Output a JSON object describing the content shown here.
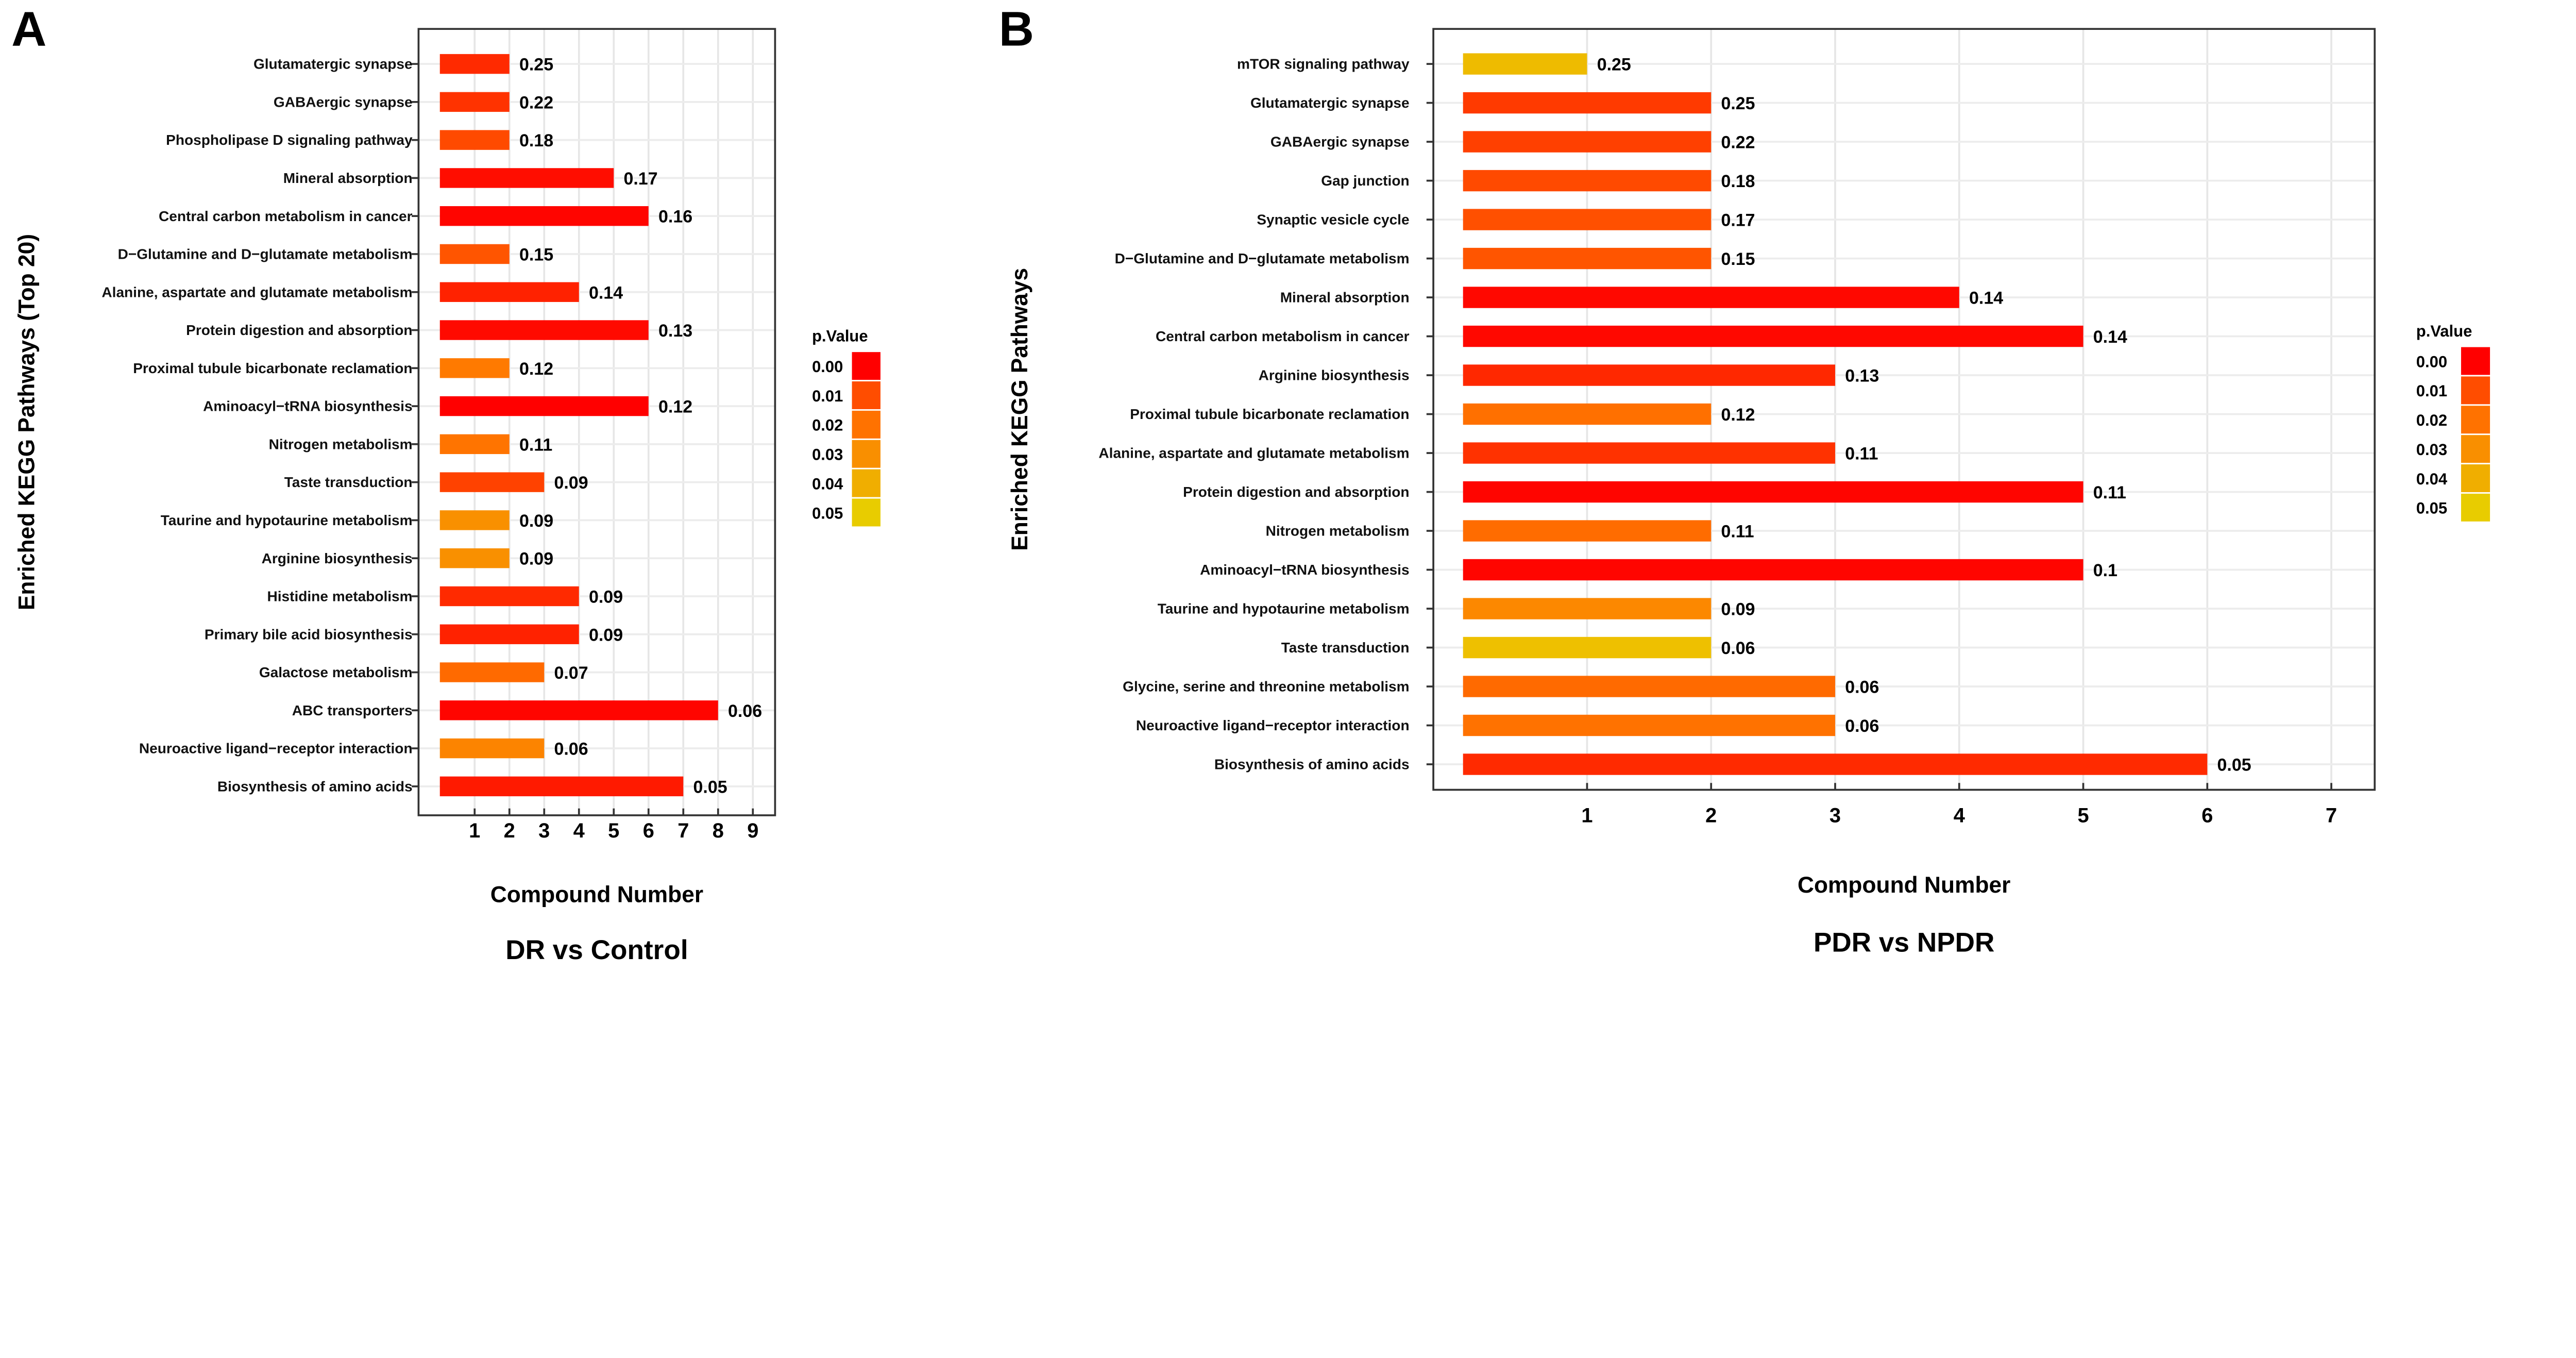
{
  "legend_colors": {
    "0.00": "#FF0000",
    "0.01": "#FF4D00",
    "0.02": "#FF7200",
    "0.03": "#F98F00",
    "0.04": "#F0AE00",
    "0.05": "#E8CC00"
  },
  "chart_data": [
    {
      "type": "bar",
      "orientation": "horizontal",
      "panel_letter": "A",
      "title": "DR vs Control",
      "xlabel": "Compound Number",
      "ylabel": "Enriched KEGG Pathways (Top 20)",
      "xticks": [
        1,
        2,
        3,
        4,
        5,
        6,
        7,
        8,
        9
      ],
      "xlim": [
        0,
        9.5
      ],
      "grid": true,
      "legend": {
        "title": "p.Value",
        "position": "right",
        "labels": [
          "0.00",
          "0.01",
          "0.02",
          "0.03",
          "0.04",
          "0.05"
        ]
      },
      "bars": [
        {
          "category": "Glutamatergic synapse",
          "value": 2,
          "label": "0.25",
          "color": "#FF2A00"
        },
        {
          "category": "GABAergic synapse",
          "value": 2,
          "label": "0.22",
          "color": "#FF3300"
        },
        {
          "category": "Phospholipase D signaling pathway",
          "value": 2,
          "label": "0.18",
          "color": "#FF4A00"
        },
        {
          "category": "Mineral absorption",
          "value": 5,
          "label": "0.17",
          "color": "#FF0D00"
        },
        {
          "category": "Central carbon metabolism in cancer",
          "value": 6,
          "label": "0.16",
          "color": "#FF0500"
        },
        {
          "category": "D−Glutamine and D−glutamate metabolism",
          "value": 2,
          "label": "0.15",
          "color": "#FF5500"
        },
        {
          "category": "Alanine, aspartate and glutamate metabolism",
          "value": 4,
          "label": "0.14",
          "color": "#FF2200"
        },
        {
          "category": "Protein digestion and absorption",
          "value": 6,
          "label": "0.13",
          "color": "#FF0A00"
        },
        {
          "category": "Proximal tubule bicarbonate reclamation",
          "value": 2,
          "label": "0.12",
          "color": "#FF7A00"
        },
        {
          "category": "Aminoacyl−tRNA biosynthesis",
          "value": 6,
          "label": "0.12",
          "color": "#FF0000"
        },
        {
          "category": "Nitrogen metabolism",
          "value": 2,
          "label": "0.11",
          "color": "#FF7400"
        },
        {
          "category": "Taste transduction",
          "value": 3,
          "label": "0.09",
          "color": "#FF4200"
        },
        {
          "category": "Taurine and hypotaurine metabolism",
          "value": 2,
          "label": "0.09",
          "color": "#F99000"
        },
        {
          "category": "Arginine biosynthesis",
          "value": 2,
          "label": "0.09",
          "color": "#F99000"
        },
        {
          "category": "Histidine metabolism",
          "value": 4,
          "label": "0.09",
          "color": "#FF2A00"
        },
        {
          "category": "Primary bile acid biosynthesis",
          "value": 4,
          "label": "0.09",
          "color": "#FF2200"
        },
        {
          "category": "Galactose metabolism",
          "value": 3,
          "label": "0.07",
          "color": "#FF6A00"
        },
        {
          "category": "ABC transporters",
          "value": 8,
          "label": "0.06",
          "color": "#FF0500"
        },
        {
          "category": "Neuroactive ligand−receptor interaction",
          "value": 3,
          "label": "0.06",
          "color": "#FC8400"
        },
        {
          "category": "Biosynthesis of amino acids",
          "value": 7,
          "label": "0.05",
          "color": "#FF1A00"
        }
      ]
    },
    {
      "type": "bar",
      "orientation": "horizontal",
      "panel_letter": "B",
      "title": "PDR vs NPDR",
      "xlabel": "Compound Number",
      "ylabel": "Enriched KEGG Pathways",
      "xticks": [
        1,
        2,
        3,
        4,
        5,
        6,
        7
      ],
      "xlim": [
        0,
        7.3
      ],
      "grid": true,
      "legend": {
        "title": "p.Value",
        "position": "right",
        "labels": [
          "0.00",
          "0.01",
          "0.02",
          "0.03",
          "0.04",
          "0.05"
        ]
      },
      "bars": [
        {
          "category": "mTOR signaling pathway",
          "value": 1,
          "label": "0.25",
          "color": "#EEBB00"
        },
        {
          "category": "Glutamatergic synapse",
          "value": 2,
          "label": "0.25",
          "color": "#FF3A00"
        },
        {
          "category": "GABAergic synapse",
          "value": 2,
          "label": "0.22",
          "color": "#FF4000"
        },
        {
          "category": "Gap junction",
          "value": 2,
          "label": "0.18",
          "color": "#FF4A00"
        },
        {
          "category": "Synaptic vesicle cycle",
          "value": 2,
          "label": "0.17",
          "color": "#FF5000"
        },
        {
          "category": "D−Glutamine and D−glutamate metabolism",
          "value": 2,
          "label": "0.15",
          "color": "#FF5500"
        },
        {
          "category": "Mineral absorption",
          "value": 4,
          "label": "0.14",
          "color": "#FF0800"
        },
        {
          "category": "Central carbon metabolism in cancer",
          "value": 5,
          "label": "0.14",
          "color": "#FF0800"
        },
        {
          "category": "Arginine biosynthesis",
          "value": 3,
          "label": "0.13",
          "color": "#FF2800"
        },
        {
          "category": "Proximal tubule bicarbonate reclamation",
          "value": 2,
          "label": "0.12",
          "color": "#FF7000"
        },
        {
          "category": "Alanine, aspartate and glutamate metabolism",
          "value": 3,
          "label": "0.11",
          "color": "#FF3200"
        },
        {
          "category": "Protein digestion and absorption",
          "value": 5,
          "label": "0.11",
          "color": "#FF0500"
        },
        {
          "category": "Nitrogen metabolism",
          "value": 2,
          "label": "0.11",
          "color": "#FF6C00"
        },
        {
          "category": "Aminoacyl−tRNA biosynthesis",
          "value": 5,
          "label": "0.1",
          "color": "#FF0500"
        },
        {
          "category": "Taurine and hypotaurine metabolism",
          "value": 2,
          "label": "0.09",
          "color": "#FC8800"
        },
        {
          "category": "Taste transduction",
          "value": 2,
          "label": "0.06",
          "color": "#EEC000"
        },
        {
          "category": "Glycine, serine and threonine metabolism",
          "value": 3,
          "label": "0.06",
          "color": "#FF6A00"
        },
        {
          "category": "Neuroactive ligand−receptor interaction",
          "value": 3,
          "label": "0.06",
          "color": "#FF7200"
        },
        {
          "category": "Biosynthesis of amino acids",
          "value": 6,
          "label": "0.05",
          "color": "#FF2A00"
        }
      ]
    }
  ]
}
